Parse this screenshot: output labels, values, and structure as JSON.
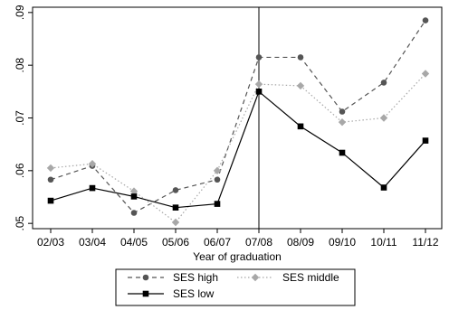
{
  "chart_data": {
    "type": "line",
    "categories": [
      "02/03",
      "03/04",
      "04/05",
      "05/06",
      "06/07",
      "07/08",
      "08/09",
      "09/10",
      "10/11",
      "11/12"
    ],
    "xlabel": "Year of graduation",
    "ylabel": "",
    "ylim": [
      0.049,
      0.091
    ],
    "yticks": [
      0.05,
      0.06,
      0.07,
      0.08,
      0.09
    ],
    "ytick_labels": [
      ".05",
      ".06",
      ".07",
      ".08",
      ".09"
    ],
    "vline_at": "07/08",
    "grid": false,
    "legend_position": "bottom",
    "series": [
      {
        "name": "SES high",
        "values": [
          0.0583,
          0.0609,
          0.052,
          0.0563,
          0.0583,
          0.0815,
          0.0815,
          0.0712,
          0.0767,
          0.0885
        ],
        "color": "#555555",
        "dash": "dashed",
        "marker": "circle"
      },
      {
        "name": "SES middle",
        "values": [
          0.0605,
          0.0613,
          0.0561,
          0.0502,
          0.06,
          0.0764,
          0.0761,
          0.0692,
          0.07,
          0.0784
        ],
        "color": "#a8a8a8",
        "dash": "dotted",
        "marker": "diamond"
      },
      {
        "name": "SES low",
        "values": [
          0.0543,
          0.0567,
          0.0551,
          0.053,
          0.0537,
          0.075,
          0.0684,
          0.0634,
          0.0568,
          0.0657
        ],
        "color": "#000000",
        "dash": "solid",
        "marker": "square"
      }
    ]
  }
}
